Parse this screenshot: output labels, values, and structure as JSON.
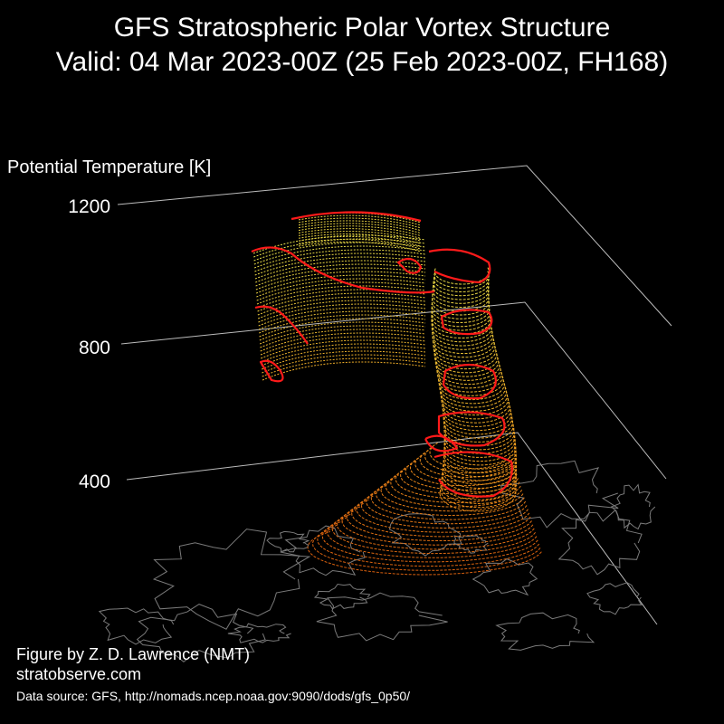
{
  "title": {
    "line1": "GFS Stratospheric Polar Vortex Structure",
    "line2": "Valid: 04 Mar 2023-00Z  (25 Feb 2023-00Z, FH168)"
  },
  "axis": {
    "label": "Potential Temperature [K]",
    "ticks": [
      "1200",
      "800",
      "400"
    ]
  },
  "credits": {
    "author": "Figure by Z. D. Lawrence (NMT)",
    "site": "stratobserve.com",
    "source": "Data source: GFS, http://nomads.ncep.noaa.gov:9090/dods/gfs_0p50/"
  },
  "colors": {
    "background": "#000000",
    "grid": "#bbbbbb",
    "coastline": "#7a7a7a",
    "edge": "#ff1a1a",
    "low": "#d9600e",
    "mid": "#f0a020",
    "high": "#e8e04a"
  }
}
